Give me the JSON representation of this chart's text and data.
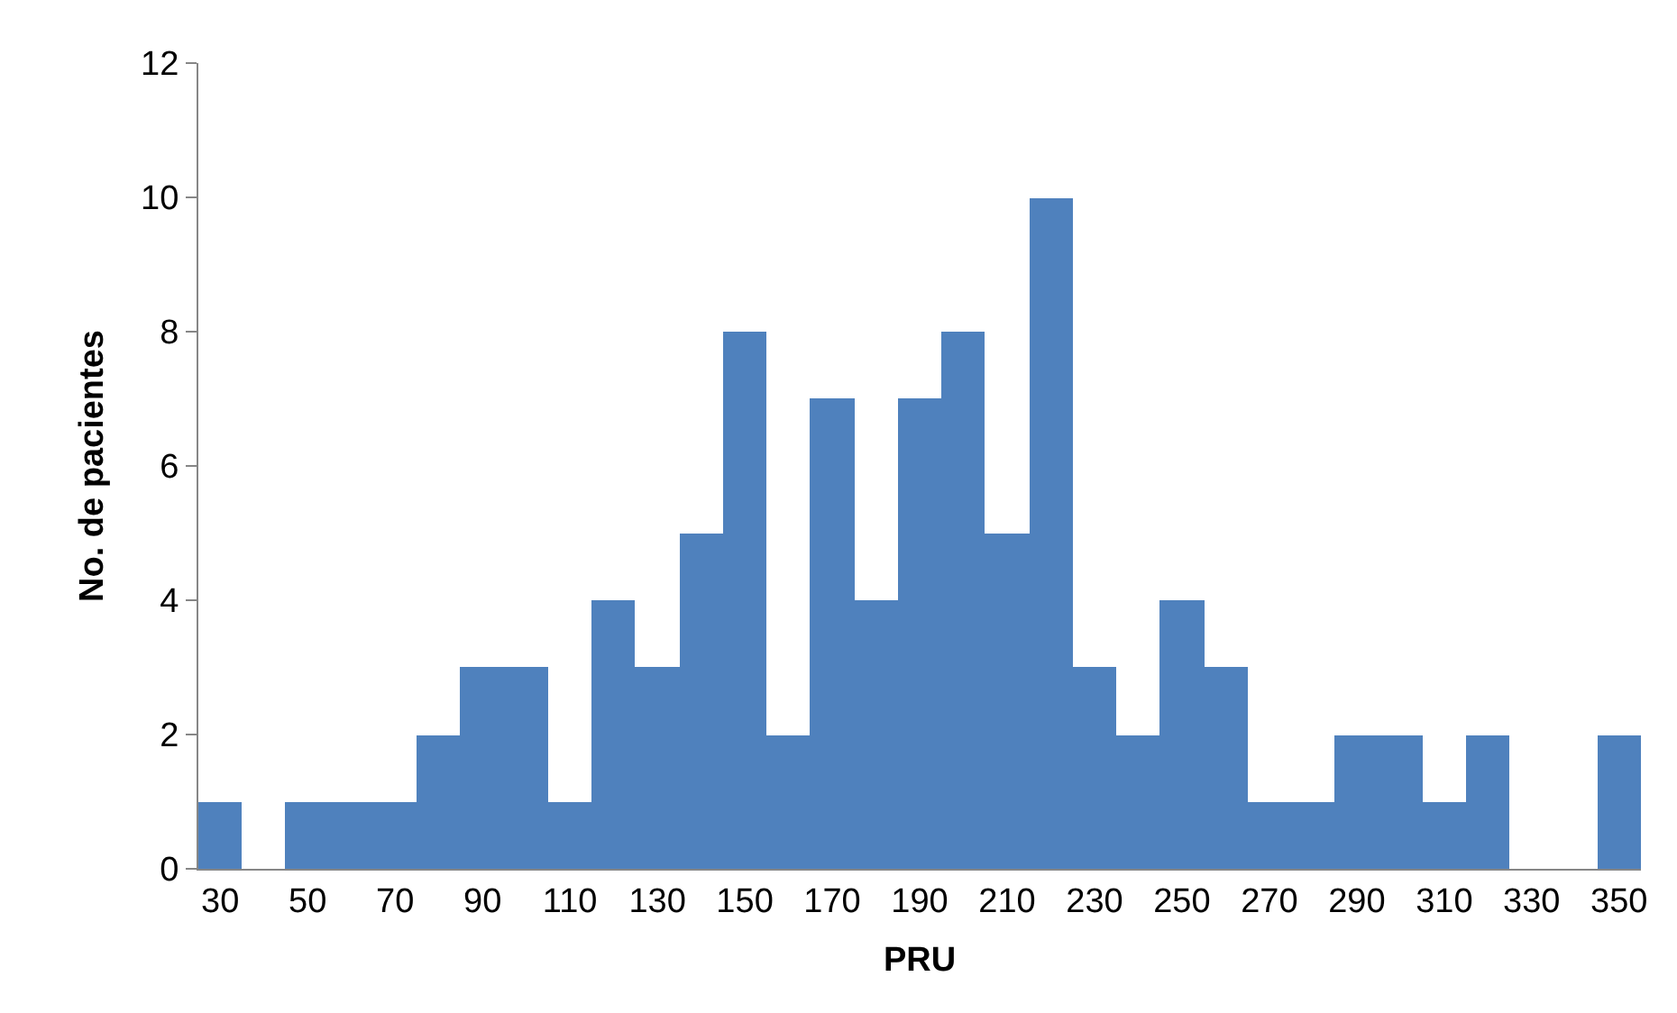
{
  "chart_data": {
    "type": "bar",
    "xlabel": "PRU",
    "ylabel": "No. de pacientes",
    "categories": [
      "30",
      null,
      "50",
      null,
      "70",
      null,
      "90",
      null,
      "110",
      null,
      "130",
      null,
      "150",
      null,
      "170",
      null,
      "190",
      null,
      "210",
      null,
      "230",
      null,
      "250",
      null,
      "270",
      null,
      "290",
      null,
      "310",
      null,
      "330",
      null,
      "350"
    ],
    "values": [
      1,
      0,
      1,
      1,
      1,
      2,
      3,
      3,
      1,
      4,
      3,
      5,
      8,
      2,
      7,
      4,
      7,
      8,
      5,
      10,
      3,
      2,
      4,
      3,
      1,
      1,
      2,
      2,
      1,
      2,
      0,
      0,
      2
    ],
    "color": "#4f81bd",
    "ylim": [
      0,
      12
    ],
    "yticks": [
      0,
      2,
      4,
      6,
      8,
      10,
      12
    ]
  }
}
